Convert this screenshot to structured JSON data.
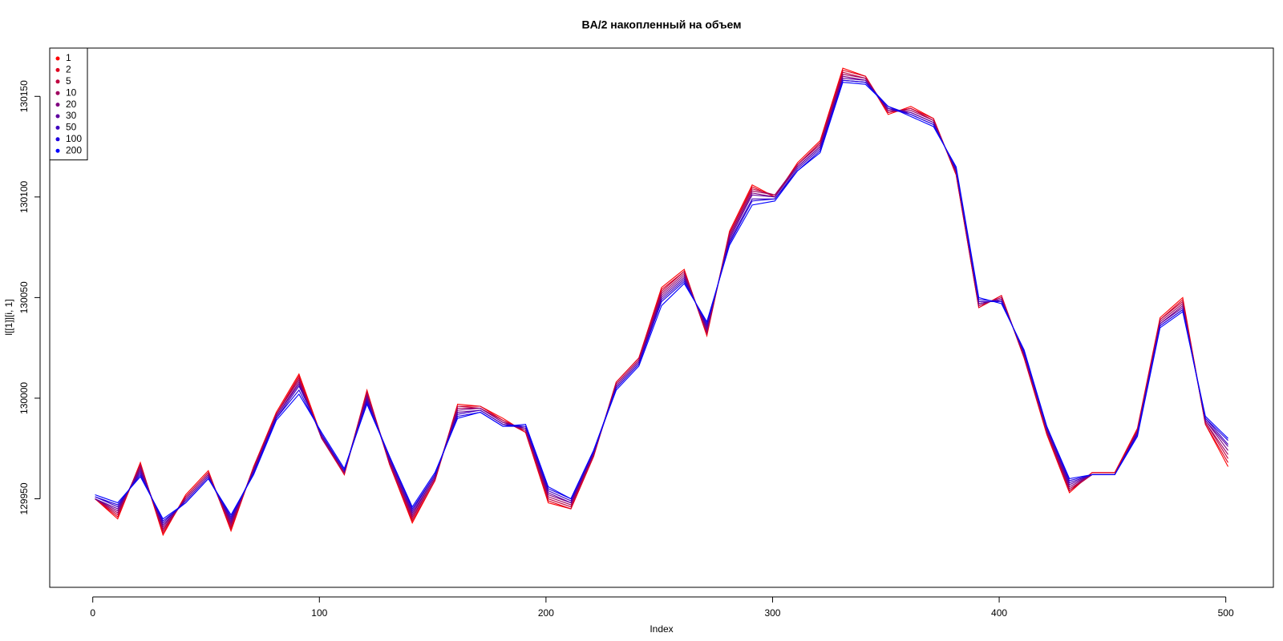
{
  "chart_data": {
    "type": "line",
    "title": "BA/2 накопленный на объем",
    "x_label": "Index",
    "y_label": "l[[1]][i, 1]",
    "xlim": [
      -19,
      521
    ],
    "ylim": [
      129906,
      130174
    ],
    "xticks": [
      0,
      100,
      200,
      300,
      400,
      500
    ],
    "yticks": [
      129950,
      130000,
      130050,
      130100,
      130150
    ],
    "grid": false,
    "legend": "top-left",
    "x": [
      1,
      11,
      21,
      31,
      41,
      51,
      61,
      71,
      81,
      91,
      101,
      111,
      121,
      131,
      141,
      151,
      161,
      171,
      181,
      191,
      201,
      211,
      221,
      231,
      241,
      251,
      261,
      271,
      281,
      291,
      301,
      311,
      321,
      331,
      341,
      351,
      361,
      371,
      381,
      391,
      401,
      411,
      421,
      431,
      441,
      451,
      461,
      471,
      481,
      491,
      501
    ],
    "series": [
      {
        "name": "1",
        "color": "#FF0000",
        "values": [
          129950,
          129940,
          129968,
          129932,
          129952,
          129964,
          129934,
          129966,
          129993,
          130012,
          129981,
          129962,
          130004,
          129967,
          129938,
          129959,
          129997,
          129996,
          129990,
          129983,
          129948,
          129945,
          129971,
          130008,
          130020,
          130055,
          130064,
          130031,
          130083,
          130106,
          130100,
          130117,
          130128,
          130164,
          130160,
          130141,
          130145,
          130139,
          130111,
          130045,
          130051,
          130020,
          129982,
          129953,
          129963,
          129963,
          129985,
          130040,
          130050,
          129987,
          129966
        ]
      },
      {
        "name": "2",
        "color": "#DF001F",
        "values": [
          129950,
          129941,
          129967,
          129933,
          129951,
          129963,
          129935,
          129966,
          129992,
          130011,
          129980,
          129962,
          130003,
          129967,
          129939,
          129959,
          129996,
          129996,
          129989,
          129983,
          129949,
          129945,
          129971,
          130008,
          130020,
          130054,
          130063,
          130032,
          130082,
          130105,
          130100,
          130116,
          130127,
          130163,
          130160,
          130142,
          130144,
          130139,
          130111,
          130045,
          130051,
          130020,
          129983,
          129954,
          129963,
          129963,
          129984,
          130039,
          130049,
          129987,
          129968
        ]
      },
      {
        "name": "5",
        "color": "#BF003F",
        "values": [
          129950,
          129942,
          129967,
          129934,
          129951,
          129963,
          129936,
          129965,
          129992,
          130010,
          129980,
          129963,
          130003,
          129968,
          129940,
          129960,
          129996,
          129995,
          129989,
          129984,
          129950,
          129946,
          129972,
          130007,
          130019,
          130053,
          130063,
          130032,
          130082,
          130104,
          130101,
          130116,
          130127,
          130162,
          130159,
          130142,
          130144,
          130138,
          130112,
          130046,
          130050,
          130021,
          129983,
          129954,
          129962,
          129962,
          129984,
          130039,
          130048,
          129988,
          129970
        ]
      },
      {
        "name": "10",
        "color": "#9F005F",
        "values": [
          129950,
          129943,
          129966,
          129935,
          129950,
          129962,
          129937,
          129965,
          129992,
          130009,
          129980,
          129963,
          130002,
          129968,
          129941,
          129960,
          129995,
          129995,
          129988,
          129984,
          129951,
          129947,
          129972,
          130007,
          130019,
          130052,
          130062,
          130033,
          130081,
          130103,
          130101,
          130116,
          130126,
          130161,
          130159,
          130143,
          130143,
          130138,
          130112,
          130046,
          130050,
          130021,
          129984,
          129955,
          129962,
          129962,
          129984,
          130038,
          130047,
          129988,
          129972
        ]
      },
      {
        "name": "20",
        "color": "#7F007F",
        "values": [
          129950,
          129944,
          129965,
          129936,
          129950,
          129962,
          129938,
          129964,
          129991,
          130008,
          129981,
          129963,
          130001,
          129969,
          129942,
          129961,
          129994,
          129995,
          129988,
          129985,
          129952,
          129948,
          129972,
          130006,
          130018,
          130051,
          130061,
          130034,
          130080,
          130102,
          130100,
          130115,
          130125,
          130160,
          130158,
          130143,
          130142,
          130137,
          130113,
          130047,
          130049,
          130022,
          129984,
          129956,
          129962,
          129962,
          129983,
          130037,
          130046,
          129989,
          129974
        ]
      },
      {
        "name": "30",
        "color": "#5F009F",
        "values": [
          129950,
          129945,
          129964,
          129937,
          129949,
          129961,
          129939,
          129964,
          129991,
          130007,
          129981,
          129964,
          130000,
          129969,
          129943,
          129961,
          129993,
          129994,
          129987,
          129985,
          129953,
          129948,
          129973,
          130006,
          130018,
          130050,
          130060,
          130035,
          130079,
          130101,
          130100,
          130115,
          130125,
          130159,
          130158,
          130144,
          130142,
          130137,
          130113,
          130047,
          130049,
          130022,
          129985,
          129957,
          129962,
          129962,
          129983,
          130037,
          130045,
          129989,
          129976
        ]
      },
      {
        "name": "50",
        "color": "#3F00BF",
        "values": [
          129951,
          129946,
          129963,
          129938,
          129949,
          129961,
          129940,
          129963,
          129990,
          130006,
          129982,
          129964,
          129999,
          129970,
          129944,
          129962,
          129992,
          129994,
          129987,
          129986,
          129954,
          129949,
          129973,
          130005,
          130017,
          130049,
          130059,
          130036,
          130078,
          130099,
          130099,
          130114,
          130124,
          130158,
          130157,
          130144,
          130141,
          130136,
          130114,
          130048,
          130048,
          130023,
          129985,
          129958,
          129962,
          129962,
          129982,
          130036,
          130044,
          129990,
          129977
        ]
      },
      {
        "name": "100",
        "color": "#1F00DF",
        "values": [
          129951,
          129947,
          129962,
          129939,
          129948,
          129960,
          129941,
          129963,
          129990,
          130004,
          129982,
          129964,
          129998,
          129971,
          129945,
          129962,
          129991,
          129993,
          129986,
          129986,
          129955,
          129950,
          129974,
          130005,
          130017,
          130048,
          130058,
          130037,
          130077,
          130098,
          130099,
          130113,
          130123,
          130158,
          130157,
          130145,
          130141,
          130136,
          130114,
          130049,
          130048,
          130023,
          129986,
          129959,
          129962,
          129962,
          129982,
          130036,
          130044,
          129990,
          129979
        ]
      },
      {
        "name": "200",
        "color": "#0000FF",
        "values": [
          129952,
          129948,
          129961,
          129940,
          129948,
          129960,
          129942,
          129962,
          129989,
          130002,
          129983,
          129965,
          129997,
          129971,
          129946,
          129963,
          129990,
          129993,
          129986,
          129987,
          129956,
          129950,
          129974,
          130004,
          130016,
          130046,
          130057,
          130038,
          130076,
          130096,
          130098,
          130113,
          130122,
          130157,
          130156,
          130145,
          130140,
          130135,
          130115,
          130050,
          130047,
          130024,
          129986,
          129960,
          129962,
          129962,
          129981,
          130035,
          130043,
          129991,
          129980
        ]
      }
    ]
  }
}
